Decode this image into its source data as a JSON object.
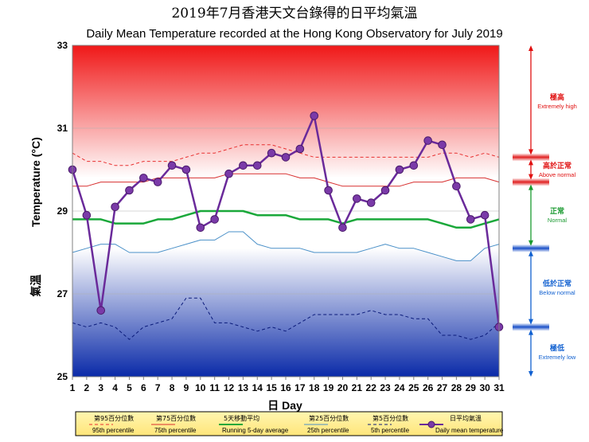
{
  "title_zh": "2019年7月香港天文台錄得的日平均氣溫",
  "title_en": "Daily Mean Temperature recorded at the Hong Kong Observatory for July 2019",
  "chart_data": {
    "type": "line",
    "title": "Daily Mean Temperature recorded at the Hong Kong Observatory for July 2019",
    "xlabel": "日 Day",
    "ylabel_zh": "氣溫",
    "ylabel": "Temperature (°C)",
    "ylim": [
      25,
      33
    ],
    "yticks": [
      25,
      27,
      29,
      31,
      33
    ],
    "x": [
      1,
      2,
      3,
      4,
      5,
      6,
      7,
      8,
      9,
      10,
      11,
      12,
      13,
      14,
      15,
      16,
      17,
      18,
      19,
      20,
      21,
      22,
      23,
      24,
      25,
      26,
      27,
      28,
      29,
      30,
      31
    ],
    "series": [
      {
        "key": "p95",
        "name_zh": "第95百分位數",
        "name": "95th percentile",
        "color": "#e83030",
        "dash": "4,3",
        "width": 1,
        "values": [
          30.4,
          30.2,
          30.2,
          30.1,
          30.1,
          30.2,
          30.2,
          30.2,
          30.3,
          30.4,
          30.4,
          30.5,
          30.6,
          30.6,
          30.6,
          30.5,
          30.4,
          30.3,
          30.3,
          30.3,
          30.3,
          30.3,
          30.3,
          30.3,
          30.3,
          30.3,
          30.4,
          30.4,
          30.3,
          30.4,
          30.3
        ]
      },
      {
        "key": "p75",
        "name_zh": "第75百分位數",
        "name": "75th percentile",
        "color": "#d83030",
        "dash": "",
        "width": 1,
        "values": [
          29.6,
          29.6,
          29.7,
          29.7,
          29.7,
          29.7,
          29.8,
          29.8,
          29.8,
          29.8,
          29.8,
          29.9,
          29.9,
          29.9,
          29.9,
          29.9,
          29.8,
          29.8,
          29.7,
          29.6,
          29.6,
          29.6,
          29.6,
          29.6,
          29.7,
          29.7,
          29.7,
          29.8,
          29.8,
          29.8,
          29.7
        ]
      },
      {
        "key": "avg5",
        "name_zh": "5天移動平均",
        "name": "Running 5-day average",
        "color": "#1aa83a",
        "dash": "",
        "width": 2.5,
        "values": [
          28.8,
          28.8,
          28.8,
          28.7,
          28.7,
          28.7,
          28.8,
          28.8,
          28.9,
          29.0,
          29.0,
          29.0,
          29.0,
          28.9,
          28.9,
          28.9,
          28.8,
          28.8,
          28.8,
          28.7,
          28.8,
          28.8,
          28.8,
          28.8,
          28.8,
          28.8,
          28.7,
          28.6,
          28.6,
          28.7,
          28.8
        ]
      },
      {
        "key": "p25",
        "name_zh": "第25百分位數",
        "name": "25th percentile",
        "color": "#4a90c8",
        "dash": "",
        "width": 1,
        "values": [
          28.0,
          28.1,
          28.2,
          28.2,
          28.0,
          28.0,
          28.0,
          28.1,
          28.2,
          28.3,
          28.3,
          28.5,
          28.5,
          28.2,
          28.1,
          28.1,
          28.1,
          28.0,
          28.0,
          28.0,
          28.0,
          28.1,
          28.2,
          28.1,
          28.1,
          28.0,
          27.9,
          27.8,
          27.8,
          28.1,
          28.2
        ]
      },
      {
        "key": "p5",
        "name_zh": "第5百分位數",
        "name": "5th percentile",
        "color": "#0a1a7a",
        "dash": "4,3",
        "width": 1,
        "values": [
          26.3,
          26.2,
          26.3,
          26.2,
          25.9,
          26.2,
          26.3,
          26.4,
          26.9,
          26.9,
          26.3,
          26.3,
          26.2,
          26.1,
          26.2,
          26.1,
          26.3,
          26.5,
          26.5,
          26.5,
          26.5,
          26.6,
          26.5,
          26.5,
          26.4,
          26.4,
          26.0,
          26.0,
          25.9,
          26.0,
          26.3
        ]
      },
      {
        "key": "daily",
        "name_zh": "日平均氣溫",
        "name": "Daily mean temperature",
        "color": "#6a2a9a",
        "dash": "",
        "width": 2.5,
        "markers": true,
        "values": [
          30.0,
          28.9,
          26.6,
          29.1,
          29.5,
          29.8,
          29.7,
          30.1,
          30.0,
          28.6,
          28.8,
          29.9,
          30.1,
          30.1,
          30.4,
          30.3,
          30.5,
          31.3,
          29.5,
          28.6,
          29.3,
          29.2,
          29.5,
          30.0,
          30.1,
          30.7,
          30.6,
          29.6,
          28.8,
          28.9,
          26.2
        ]
      }
    ],
    "categories": [
      {
        "zh": "極高",
        "en": "Extremely high",
        "color": "#e01010"
      },
      {
        "zh": "高於正常",
        "en": "Above normal",
        "color": "#e01010"
      },
      {
        "zh": "正常",
        "en": "Normal",
        "color": "#1a9a30"
      },
      {
        "zh": "低於正常",
        "en": "Below normal",
        "color": "#1060d0"
      },
      {
        "zh": "極低",
        "en": "Extremely low",
        "color": "#1060d0"
      }
    ]
  }
}
